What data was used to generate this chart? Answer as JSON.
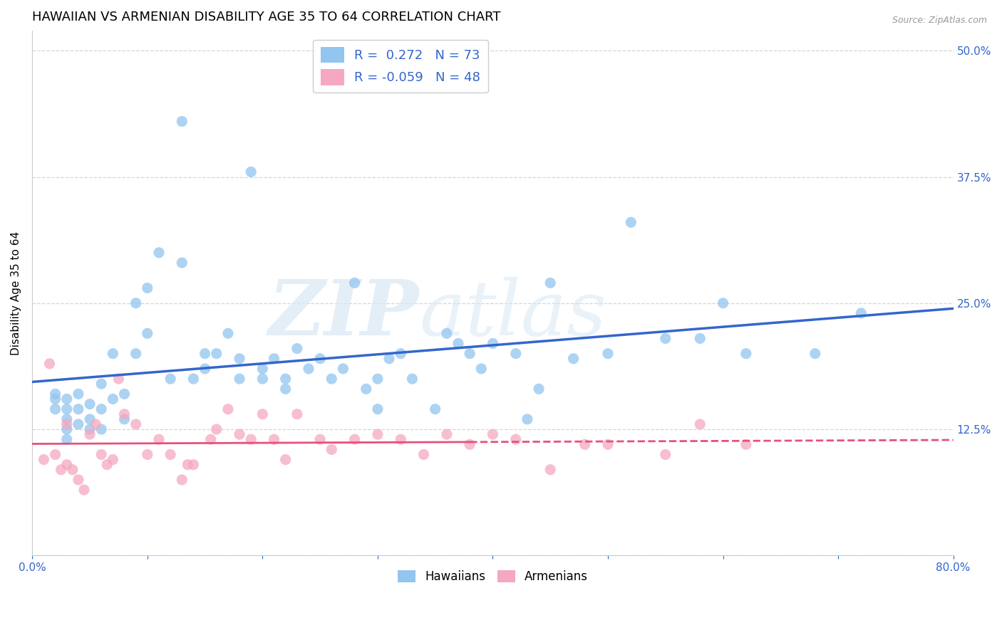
{
  "title": "HAWAIIAN VS ARMENIAN DISABILITY AGE 35 TO 64 CORRELATION CHART",
  "source": "Source: ZipAtlas.com",
  "ylabel": "Disability Age 35 to 64",
  "xlim": [
    0.0,
    0.8
  ],
  "ylim": [
    0.0,
    0.52
  ],
  "xticks": [
    0.0,
    0.1,
    0.2,
    0.3,
    0.4,
    0.5,
    0.6,
    0.7,
    0.8
  ],
  "xticklabels": [
    "0.0%",
    "",
    "",
    "",
    "",
    "",
    "",
    "",
    "80.0%"
  ],
  "ytick_positions": [
    0.0,
    0.125,
    0.25,
    0.375,
    0.5
  ],
  "yticklabels_right": [
    "",
    "12.5%",
    "25.0%",
    "37.5%",
    "50.0%"
  ],
  "hawaiian_color": "#92C5F0",
  "armenian_color": "#F5A8C0",
  "trend_hawaii_color": "#3366CC",
  "trend_armenian_color": "#E8507A",
  "legend_R_hawaiian": "0.272",
  "legend_N_hawaiian": "73",
  "legend_R_armenian": "-0.059",
  "legend_N_armenian": "48",
  "watermark_zip": "ZIP",
  "watermark_atlas": "atlas",
  "hawaiian_x": [
    0.02,
    0.02,
    0.02,
    0.03,
    0.03,
    0.03,
    0.03,
    0.03,
    0.04,
    0.04,
    0.04,
    0.05,
    0.05,
    0.05,
    0.06,
    0.06,
    0.06,
    0.07,
    0.07,
    0.08,
    0.08,
    0.09,
    0.09,
    0.1,
    0.1,
    0.11,
    0.12,
    0.13,
    0.13,
    0.14,
    0.15,
    0.15,
    0.16,
    0.17,
    0.18,
    0.18,
    0.19,
    0.2,
    0.2,
    0.21,
    0.22,
    0.22,
    0.23,
    0.24,
    0.25,
    0.26,
    0.27,
    0.28,
    0.29,
    0.3,
    0.3,
    0.31,
    0.32,
    0.33,
    0.35,
    0.36,
    0.37,
    0.38,
    0.39,
    0.4,
    0.42,
    0.43,
    0.44,
    0.45,
    0.47,
    0.5,
    0.52,
    0.55,
    0.58,
    0.6,
    0.62,
    0.68,
    0.72
  ],
  "hawaiian_y": [
    0.155,
    0.16,
    0.145,
    0.155,
    0.145,
    0.135,
    0.125,
    0.115,
    0.145,
    0.16,
    0.13,
    0.125,
    0.135,
    0.15,
    0.17,
    0.145,
    0.125,
    0.155,
    0.2,
    0.135,
    0.16,
    0.2,
    0.25,
    0.265,
    0.22,
    0.3,
    0.175,
    0.43,
    0.29,
    0.175,
    0.185,
    0.2,
    0.2,
    0.22,
    0.195,
    0.175,
    0.38,
    0.185,
    0.175,
    0.195,
    0.175,
    0.165,
    0.205,
    0.185,
    0.195,
    0.175,
    0.185,
    0.27,
    0.165,
    0.175,
    0.145,
    0.195,
    0.2,
    0.175,
    0.145,
    0.22,
    0.21,
    0.2,
    0.185,
    0.21,
    0.2,
    0.135,
    0.165,
    0.27,
    0.195,
    0.2,
    0.33,
    0.215,
    0.215,
    0.25,
    0.2,
    0.2,
    0.24
  ],
  "armenian_x": [
    0.01,
    0.015,
    0.02,
    0.025,
    0.03,
    0.03,
    0.035,
    0.04,
    0.045,
    0.05,
    0.055,
    0.06,
    0.065,
    0.07,
    0.075,
    0.08,
    0.09,
    0.1,
    0.11,
    0.12,
    0.13,
    0.135,
    0.14,
    0.155,
    0.16,
    0.17,
    0.18,
    0.19,
    0.2,
    0.21,
    0.22,
    0.23,
    0.25,
    0.26,
    0.28,
    0.3,
    0.32,
    0.34,
    0.36,
    0.38,
    0.4,
    0.42,
    0.45,
    0.48,
    0.5,
    0.55,
    0.58,
    0.62
  ],
  "armenian_y": [
    0.095,
    0.19,
    0.1,
    0.085,
    0.13,
    0.09,
    0.085,
    0.075,
    0.065,
    0.12,
    0.13,
    0.1,
    0.09,
    0.095,
    0.175,
    0.14,
    0.13,
    0.1,
    0.115,
    0.1,
    0.075,
    0.09,
    0.09,
    0.115,
    0.125,
    0.145,
    0.12,
    0.115,
    0.14,
    0.115,
    0.095,
    0.14,
    0.115,
    0.105,
    0.115,
    0.12,
    0.115,
    0.1,
    0.12,
    0.11,
    0.12,
    0.115,
    0.085,
    0.11,
    0.11,
    0.1,
    0.13,
    0.11
  ],
  "grid_color": "#CCCCCC",
  "background_color": "#FFFFFF",
  "title_fontsize": 13,
  "axis_label_fontsize": 11,
  "tick_fontsize": 11,
  "legend_fontsize": 13,
  "dot_size": 120
}
